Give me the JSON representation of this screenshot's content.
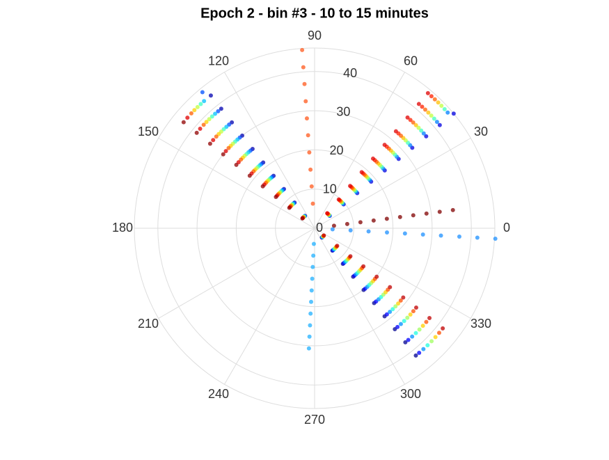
{
  "chart_data": {
    "type": "polar-scatter",
    "title": "Epoch 2 - bin #3 - 10 to 15 minutes",
    "rlim": [
      0,
      46
    ],
    "rticks": [
      0,
      10,
      20,
      30,
      40
    ],
    "thetaticks": [
      0,
      30,
      60,
      90,
      120,
      150,
      180,
      210,
      240,
      270,
      300,
      330
    ],
    "grid": true,
    "series": [
      {
        "color": "#ff5a1e",
        "theta": 94,
        "r": [
          6.3,
          10.7,
          15,
          19.4,
          23.8,
          28.1,
          32.5,
          36.9,
          41.2,
          45.6
        ]
      },
      {
        "color": "#0000b0",
        "theta": 128,
        "r": [
          4,
          8.3,
          12.7,
          17,
          21.3,
          25.7,
          30,
          34.3,
          38.7,
          43
        ]
      },
      {
        "color": "#0050ff",
        "theta": 129.5,
        "r": [
          4,
          8.3,
          12.7,
          17,
          21.3,
          25.7,
          30,
          34.3,
          38.7,
          45
        ]
      },
      {
        "color": "#00c0ff",
        "theta": 131,
        "r": [
          4,
          8.3,
          12.7,
          17,
          21.3,
          25.7,
          30,
          34.3,
          38.7,
          43
        ]
      },
      {
        "color": "#40ffc0",
        "theta": 132.5,
        "r": [
          4,
          8.3,
          12.7,
          17,
          21.3,
          25.7,
          30,
          34.3,
          38.7,
          43
        ]
      },
      {
        "color": "#c0ff40",
        "theta": 134,
        "r": [
          4,
          8.3,
          12.7,
          17,
          21.3,
          25.7,
          30,
          34.3,
          38.7,
          43
        ]
      },
      {
        "color": "#ffd000",
        "theta": 135.5,
        "r": [
          4,
          8.3,
          12.7,
          17,
          21.3,
          25.7,
          30,
          34.3,
          38.7,
          43
        ]
      },
      {
        "color": "#ff6000",
        "theta": 137,
        "r": [
          4,
          8.3,
          12.7,
          17,
          21.3,
          25.7,
          30,
          34.3,
          38.7,
          43
        ]
      },
      {
        "color": "#e00000",
        "theta": 139,
        "r": [
          4,
          8.3,
          12.7,
          17,
          21.3,
          25.7,
          30,
          34.3,
          38.7,
          43
        ]
      },
      {
        "color": "#900000",
        "theta": 141,
        "r": [
          4,
          8.3,
          12.7,
          17,
          21.3,
          25.7,
          30,
          34.3,
          38.7,
          43
        ]
      },
      {
        "color": "#0000e0",
        "theta": 39.5,
        "r": [
          5,
          9.6,
          14.1,
          18.7,
          23.2,
          27.8,
          32.3,
          36.9,
          41.4,
          46
        ]
      },
      {
        "color": "#0080ff",
        "theta": 41,
        "r": [
          5,
          9.6,
          14.1,
          18.7,
          23.2,
          27.8,
          32.3,
          36.9,
          41.4,
          45
        ]
      },
      {
        "color": "#40ffc0",
        "theta": 42.5,
        "r": [
          5,
          9.6,
          14.1,
          18.7,
          23.2,
          27.8,
          32.3,
          36.9,
          41.4,
          45
        ]
      },
      {
        "color": "#c0ff40",
        "theta": 44,
        "r": [
          5,
          9.6,
          14.1,
          18.7,
          23.2,
          27.8,
          32.3,
          36.9,
          41.4,
          45
        ]
      },
      {
        "color": "#ffc000",
        "theta": 45.5,
        "r": [
          5,
          9.6,
          14.1,
          18.7,
          23.2,
          27.8,
          32.3,
          36.9,
          41.4,
          45
        ]
      },
      {
        "color": "#ff6000",
        "theta": 47,
        "r": [
          5,
          9.6,
          14.1,
          18.7,
          23.2,
          27.8,
          32.3,
          36.9,
          41.4,
          45
        ]
      },
      {
        "color": "#ff2000",
        "theta": 48.5,
        "r": [
          5,
          9.6,
          14.1,
          18.7,
          23.2,
          27.8,
          32.3,
          36.9,
          41.4,
          45
        ]
      },
      {
        "color": "#e00000",
        "theta": 50,
        "r": [
          5,
          9.6,
          14.1,
          18.7,
          23.2,
          27.8,
          32.3,
          36.9,
          41.4,
          45
        ]
      },
      {
        "color": "#800000",
        "theta": 7.5,
        "r": [
          5,
          8.4,
          11.8,
          15.2,
          18.6,
          22,
          25.4,
          28.8,
          32.2,
          35.6
        ]
      },
      {
        "color": "#1e90ff",
        "theta": 356.7,
        "r": [
          4.6,
          9.2,
          13.8,
          18.5,
          23.1,
          27.7,
          32.3,
          37,
          41.6,
          46.2
        ]
      },
      {
        "color": "#000090",
        "theta": 308.5,
        "r": [
          3,
          7.3,
          11.6,
          15.8,
          20.1,
          24.4,
          28.7,
          32.9,
          37.2,
          41.5
        ]
      },
      {
        "color": "#0000ff",
        "theta": 310,
        "r": [
          3,
          7.3,
          11.6,
          15.8,
          20.1,
          24.4,
          28.7,
          32.9,
          37.2,
          41.5
        ]
      },
      {
        "color": "#0090ff",
        "theta": 312,
        "r": [
          3,
          7.3,
          11.6,
          15.8,
          20.1,
          24.4,
          28.7,
          32.9,
          37.2,
          41.5
        ]
      },
      {
        "color": "#20ffe0",
        "theta": 314,
        "r": [
          3,
          7.3,
          11.6,
          15.8,
          20.1,
          24.4,
          28.7,
          32.9,
          37.2,
          41.5
        ]
      },
      {
        "color": "#a0ff60",
        "theta": 316,
        "r": [
          3,
          7.3,
          11.6,
          15.8,
          20.1,
          24.4,
          28.7,
          32.9,
          37.2,
          41.5
        ]
      },
      {
        "color": "#ffd000",
        "theta": 318,
        "r": [
          3,
          7.3,
          11.6,
          15.8,
          20.1,
          24.4,
          28.7,
          32.9,
          37.2,
          41.5
        ]
      },
      {
        "color": "#ff5000",
        "theta": 320,
        "r": [
          3,
          7.3,
          11.6,
          15.8,
          20.1,
          24.4,
          28.7,
          32.9,
          37.2,
          41.5
        ]
      },
      {
        "color": "#c00000",
        "theta": 322,
        "r": [
          3,
          7.3,
          11.6,
          15.8,
          20.1,
          24.4,
          28.7,
          32.9,
          37.2,
          41.5
        ]
      },
      {
        "color": "#20b0ff",
        "theta": 267.3,
        "r": [
          4,
          7,
          9.9,
          12.9,
          15.9,
          18.8,
          21.8,
          24.8,
          27.7,
          30.7
        ]
      }
    ]
  }
}
